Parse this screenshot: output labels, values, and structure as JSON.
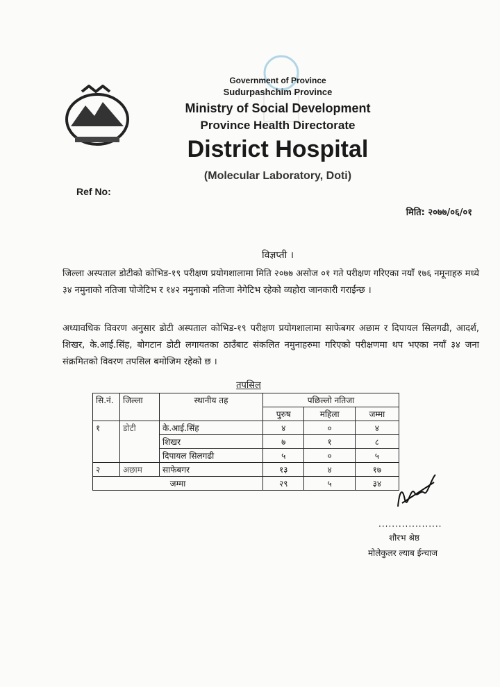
{
  "header": {
    "government": "Government of Province",
    "province": "Sudurpashchim Province",
    "ministry": "Ministry of Social Development",
    "directorate": "Province Health Directorate",
    "hospital": "District Hospital",
    "lab": "(Molecular Laboratory, Doti)"
  },
  "ref_label": "Ref No:",
  "date": "मिति: २०७७/०६/०१",
  "notice_title": "विज्ञप्ती ।",
  "paragraphs": [
    "जिल्ला अस्पताल डोटीको कोभिड-१९ परीक्षण प्रयोगशालामा मिति २०७७ असोज ०१ गते परीक्षण गरिएका नयाँ १७६ नमूनाहरु मध्ये ३४ नमुनाको नतिजा पोजेटिभ र १४२ नमुनाको नतिजा नेगेटिभ रहेको व्यहोरा जानकारी गराईन्छ ।",
    "अध्यावधिक विवरण अनुसार डोटी अस्पताल कोभिड-१९ परीक्षण प्रयोगशालामा साफेबगर अछाम र दिपायल सिलगढी, आदर्श, शिखर, के.आई.सिंह, बोगटान डोटी लगायतका ठाउँबाट संकलित नमुनाहरुमा गरिएको परीक्षणमा थप भएका नयाँ ३४ जना संक्रमितको विवरण तपसिल बमोजिम रहेको छ ।"
  ],
  "table": {
    "title": "तपसिल",
    "headers": {
      "sn": "सि.नं.",
      "district": "जिल्ला",
      "local": "स्थानीय तह",
      "result": "पछिल्लो नतिजा",
      "male": "पुरुष",
      "female": "महिला",
      "total": "जम्मा"
    },
    "rows": [
      {
        "sn": "१",
        "district": "डोटी",
        "local": "के.आई.सिंह",
        "male": "४",
        "female": "०",
        "total": "४"
      },
      {
        "local": "शिखर",
        "male": "७",
        "female": "१",
        "total": "८"
      },
      {
        "local": "दिपायल सिलगढी",
        "male": "५",
        "female": "०",
        "total": "५"
      },
      {
        "sn": "२",
        "district": "अछाम",
        "local": "साफेबगर",
        "male": "१३",
        "female": "४",
        "total": "१७"
      }
    ],
    "sum": {
      "label": "जम्मा",
      "male": "२९",
      "female": "५",
      "total": "३४"
    }
  },
  "signatory": {
    "dots": "...................",
    "name": "शौरभ श्रेष्ठ",
    "designation": "मोलेकुलर ल्याब ईन्चाज"
  }
}
